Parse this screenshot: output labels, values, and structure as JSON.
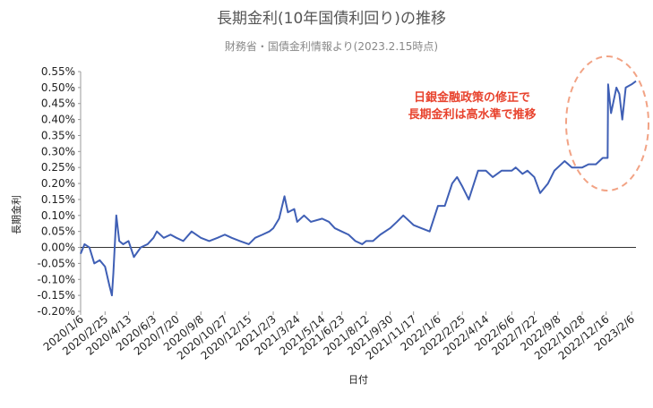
{
  "chart_data": {
    "type": "line",
    "title": "長期金利(10年国債利回り)の推移",
    "subtitle": "財務省・国債金利情報より(2023.2.15時点)",
    "x_label": "日付",
    "y_label": "長期金利",
    "annotation": [
      "日銀金融政策の修正で",
      "長期金利は高水準で推移"
    ],
    "annotation_color": "#e8432e",
    "grid": false,
    "xlim": [
      "2020/1/6",
      "2023/2/15"
    ],
    "xticks": [
      "2020/1/6",
      "2020/2/25",
      "2020/4/13",
      "2020/6/3",
      "2020/7/20",
      "2020/9/8",
      "2020/10/27",
      "2020/12/15",
      "2021/2/3",
      "2021/3/24",
      "2021/5/14",
      "2021/6/23",
      "2021/8/12",
      "2021/9/30",
      "2021/11/17",
      "2022/1/6",
      "2022/2/25",
      "2022/4/14",
      "2022/6/6",
      "2022/7/22",
      "2022/9/8",
      "2022/10/28",
      "2022/12/16",
      "2023/2/6"
    ],
    "ylim": [
      -0.2,
      0.55
    ],
    "yticks": [
      {
        "value": -0.2,
        "label": "-0.20%"
      },
      {
        "value": -0.15,
        "label": "-0.15%"
      },
      {
        "value": -0.1,
        "label": "-0.10%"
      },
      {
        "value": -0.05,
        "label": "-0.05%"
      },
      {
        "value": 0,
        "label": "0.00%"
      },
      {
        "value": 0.05,
        "label": "0.05%"
      },
      {
        "value": 0.1,
        "label": "0.10%"
      },
      {
        "value": 0.15,
        "label": "0.15%"
      },
      {
        "value": 0.2,
        "label": "0.20%"
      },
      {
        "value": 0.25,
        "label": "0.25%"
      },
      {
        "value": 0.3,
        "label": "0.30%"
      },
      {
        "value": 0.35,
        "label": "0.35%"
      },
      {
        "value": 0.4,
        "label": "0.40%"
      },
      {
        "value": 0.45,
        "label": "0.45%"
      },
      {
        "value": 0.5,
        "label": "0.50%"
      },
      {
        "value": 0.55,
        "label": "0.55%"
      }
    ],
    "x": [
      "2020/1/6",
      "2020/1/14",
      "2020/1/24",
      "2020/2/3",
      "2020/2/14",
      "2020/2/25",
      "2020/3/5",
      "2020/3/10",
      "2020/3/13",
      "2020/3/19",
      "2020/3/25",
      "2020/4/2",
      "2020/4/13",
      "2020/4/24",
      "2020/5/8",
      "2020/5/22",
      "2020/6/3",
      "2020/6/10",
      "2020/6/24",
      "2020/7/8",
      "2020/7/20",
      "2020/8/3",
      "2020/8/20",
      "2020/9/8",
      "2020/9/25",
      "2020/10/12",
      "2020/10/27",
      "2020/11/10",
      "2020/11/27",
      "2020/12/15",
      "2020/12/28",
      "2021/1/12",
      "2021/1/26",
      "2021/2/3",
      "2021/2/15",
      "2021/2/26",
      "2021/3/5",
      "2021/3/18",
      "2021/3/24",
      "2021/4/7",
      "2021/4/21",
      "2021/5/14",
      "2021/5/28",
      "2021/6/9",
      "2021/6/23",
      "2021/7/7",
      "2021/7/21",
      "2021/8/4",
      "2021/8/12",
      "2021/8/26",
      "2021/9/10",
      "2021/9/30",
      "2021/10/14",
      "2021/10/27",
      "2021/11/17",
      "2021/12/3",
      "2021/12/20",
      "2022/1/6",
      "2022/1/20",
      "2022/2/4",
      "2022/2/14",
      "2022/2/25",
      "2022/3/10",
      "2022/3/29",
      "2022/4/14",
      "2022/4/28",
      "2022/5/16",
      "2022/6/6",
      "2022/6/14",
      "2022/6/28",
      "2022/7/8",
      "2022/7/22",
      "2022/8/3",
      "2022/8/19",
      "2022/9/1",
      "2022/9/8",
      "2022/9/22",
      "2022/10/7",
      "2022/10/28",
      "2022/11/10",
      "2022/11/25",
      "2022/12/9",
      "2022/12/19",
      "2022/12/20",
      "2022/12/26",
      "2023/1/6",
      "2023/1/12",
      "2023/1/18",
      "2023/1/25",
      "2023/2/6",
      "2023/2/15"
    ],
    "series": [
      {
        "color": "#3f5fb5",
        "values": [
          -0.02,
          0.01,
          0.0,
          -0.05,
          -0.04,
          -0.06,
          -0.12,
          -0.15,
          -0.08,
          0.1,
          0.02,
          0.01,
          0.02,
          -0.03,
          0.0,
          0.01,
          0.03,
          0.05,
          0.03,
          0.04,
          0.03,
          0.02,
          0.05,
          0.03,
          0.02,
          0.03,
          0.04,
          0.03,
          0.02,
          0.01,
          0.03,
          0.04,
          0.05,
          0.06,
          0.09,
          0.16,
          0.11,
          0.12,
          0.08,
          0.1,
          0.08,
          0.09,
          0.08,
          0.06,
          0.05,
          0.04,
          0.02,
          0.01,
          0.02,
          0.02,
          0.04,
          0.06,
          0.08,
          0.1,
          0.07,
          0.06,
          0.05,
          0.13,
          0.13,
          0.2,
          0.22,
          0.19,
          0.15,
          0.24,
          0.24,
          0.22,
          0.24,
          0.24,
          0.25,
          0.23,
          0.24,
          0.22,
          0.17,
          0.2,
          0.24,
          0.25,
          0.27,
          0.25,
          0.25,
          0.26,
          0.26,
          0.28,
          0.28,
          0.51,
          0.42,
          0.5,
          0.48,
          0.4,
          0.5,
          0.51,
          0.52
        ]
      }
    ]
  }
}
